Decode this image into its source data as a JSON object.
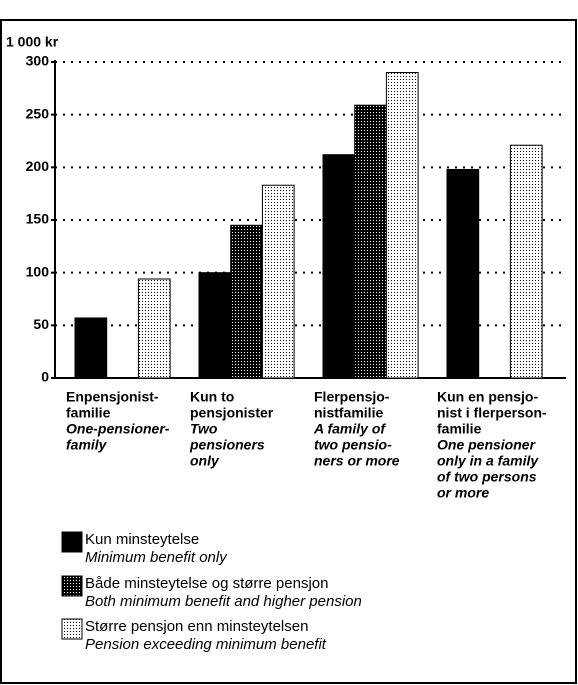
{
  "chart_data": {
    "type": "bar",
    "ylabel": "1 000 kr",
    "ylim": [
      0,
      300
    ],
    "yticks": [
      0,
      50,
      100,
      150,
      200,
      250,
      300
    ],
    "grid": true,
    "categories": [
      {
        "no": [
          "Enpensjonist-",
          "familie"
        ],
        "en": [
          "One-pensioner-",
          "family"
        ]
      },
      {
        "no": [
          "Kun to",
          "pensjonister"
        ],
        "en": [
          "Two",
          "pensioners",
          "only"
        ]
      },
      {
        "no": [
          "Flerpensjo-",
          "nistfamilie"
        ],
        "en": [
          "A family of",
          "two pensio-",
          "ners or more"
        ]
      },
      {
        "no": [
          "Kun en pensjo-",
          "nist i flerperson-",
          "familie"
        ],
        "en": [
          "One pensioner",
          "only in a family",
          "of two persons",
          "or more"
        ]
      }
    ],
    "series": [
      {
        "name": "Kun minsteytelse",
        "name_en": "Minimum benefit only",
        "color": "#000000",
        "values": [
          57,
          100,
          212,
          198
        ]
      },
      {
        "name": "Både minsteytelse og større pensjon",
        "name_en": "Both minimum benefit and higher pension",
        "color": "#3c3c3c",
        "values": [
          null,
          145,
          259,
          null
        ]
      },
      {
        "name": "Større pensjon enn minsteytelsen",
        "name_en": "Pension exceeding minimum benefit",
        "color": "#d9d9d9",
        "values": [
          94,
          183,
          290,
          221
        ]
      }
    ]
  }
}
